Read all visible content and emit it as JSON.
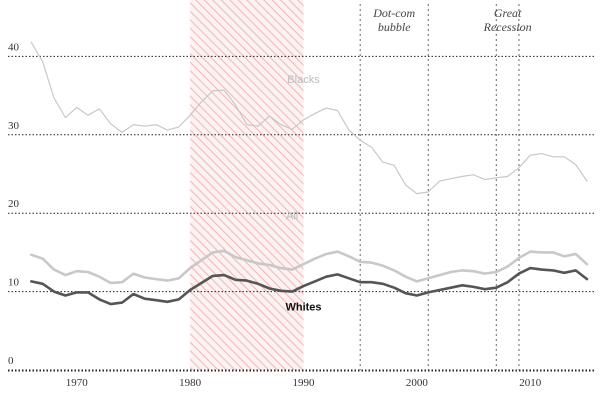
{
  "chart_data": {
    "type": "line",
    "x_range": [
      1965,
      2015
    ],
    "ylim": [
      0,
      42
    ],
    "y_ticks": [
      {
        "value": 0,
        "label": "0"
      },
      {
        "value": 10,
        "label": "10"
      },
      {
        "value": 20,
        "label": "20"
      },
      {
        "value": 30,
        "label": "30"
      },
      {
        "value": 40,
        "label": "40"
      }
    ],
    "x_ticks": [
      {
        "value": 1970,
        "label": "1970"
      },
      {
        "value": 1980,
        "label": "1980"
      },
      {
        "value": 1990,
        "label": "1990"
      },
      {
        "value": 2000,
        "label": "2000"
      },
      {
        "value": 2010,
        "label": "2010"
      }
    ],
    "shaded_period": {
      "start": 1980,
      "end": 1990
    },
    "annotations": [
      {
        "lines": [
          "Dot-com",
          "bubble"
        ],
        "x_start": 1995,
        "x_end": 2001
      },
      {
        "lines": [
          "Great",
          "Recession"
        ],
        "x_start": 2007,
        "x_end": 2009
      }
    ],
    "series": [
      {
        "name": "Blacks",
        "color": "#c8c8c8",
        "x": [
          1966,
          1967,
          1968,
          1969,
          1970,
          1971,
          1972,
          1973,
          1974,
          1975,
          1976,
          1977,
          1978,
          1979,
          1980,
          1981,
          1982,
          1983,
          1984,
          1985,
          1986,
          1987,
          1988,
          1989,
          1990,
          1991,
          1992,
          1993,
          1994,
          1995,
          1996,
          1997,
          1998,
          1999,
          2000,
          2001,
          2002,
          2003,
          2004,
          2005,
          2006,
          2007,
          2008,
          2009,
          2010,
          2011,
          2012,
          2013,
          2014,
          2015
        ],
        "values": [
          41.8,
          39.3,
          34.7,
          32.2,
          33.5,
          32.5,
          33.3,
          31.4,
          30.3,
          31.3,
          31.1,
          31.3,
          30.6,
          31.0,
          32.5,
          34.2,
          35.6,
          35.7,
          33.8,
          31.3,
          31.1,
          32.4,
          31.3,
          30.7,
          31.9,
          32.7,
          33.4,
          33.1,
          30.6,
          29.3,
          28.4,
          26.5,
          26.1,
          23.6,
          22.5,
          22.7,
          24.1,
          24.4,
          24.7,
          24.9,
          24.3,
          24.5,
          24.7,
          25.8,
          27.4,
          27.6,
          27.2,
          27.2,
          26.2,
          24.1
        ]
      },
      {
        "name": "All",
        "color": "#c8c8c8",
        "x": [
          1966,
          1967,
          1968,
          1969,
          1970,
          1971,
          1972,
          1973,
          1974,
          1975,
          1976,
          1977,
          1978,
          1979,
          1980,
          1981,
          1982,
          1983,
          1984,
          1985,
          1986,
          1987,
          1988,
          1989,
          1990,
          1991,
          1992,
          1993,
          1994,
          1995,
          1996,
          1997,
          1998,
          1999,
          2000,
          2001,
          2002,
          2003,
          2004,
          2005,
          2006,
          2007,
          2008,
          2009,
          2010,
          2011,
          2012,
          2013,
          2014,
          2015
        ],
        "values": [
          14.7,
          14.2,
          12.8,
          12.1,
          12.6,
          12.5,
          11.9,
          11.1,
          11.2,
          12.3,
          11.8,
          11.6,
          11.4,
          11.7,
          13.0,
          14.0,
          15.0,
          15.2,
          14.4,
          14.0,
          13.6,
          13.4,
          13.0,
          12.8,
          13.5,
          14.2,
          14.8,
          15.1,
          14.5,
          13.8,
          13.7,
          13.3,
          12.7,
          11.9,
          11.3,
          11.7,
          12.1,
          12.5,
          12.7,
          12.6,
          12.3,
          12.5,
          13.2,
          14.3,
          15.1,
          15.0,
          15.0,
          14.5,
          14.8,
          13.5
        ]
      },
      {
        "name": "Whites",
        "color": "#555555",
        "x": [
          1966,
          1967,
          1968,
          1969,
          1970,
          1971,
          1972,
          1973,
          1974,
          1975,
          1976,
          1977,
          1978,
          1979,
          1980,
          1981,
          1982,
          1983,
          1984,
          1985,
          1986,
          1987,
          1988,
          1989,
          1990,
          1991,
          1992,
          1993,
          1994,
          1995,
          1996,
          1997,
          1998,
          1999,
          2000,
          2001,
          2002,
          2003,
          2004,
          2005,
          2006,
          2007,
          2008,
          2009,
          2010,
          2011,
          2012,
          2013,
          2014,
          2015
        ],
        "values": [
          11.3,
          11.0,
          10.0,
          9.5,
          9.9,
          9.9,
          9.0,
          8.4,
          8.6,
          9.7,
          9.1,
          8.9,
          8.7,
          9.0,
          10.2,
          11.1,
          12.0,
          12.1,
          11.5,
          11.4,
          11.0,
          10.4,
          10.1,
          10.0,
          10.7,
          11.3,
          11.9,
          12.2,
          11.7,
          11.2,
          11.2,
          11.0,
          10.5,
          9.8,
          9.5,
          9.9,
          10.2,
          10.5,
          10.8,
          10.6,
          10.3,
          10.5,
          11.2,
          12.3,
          13.0,
          12.8,
          12.7,
          12.4,
          12.7,
          11.6
        ]
      }
    ],
    "series_labels": [
      {
        "text": "Blacks",
        "color": "#bbbbbb",
        "bold": false,
        "at": [
          1990,
          36.6
        ]
      },
      {
        "text": "All",
        "color": "#bbbbbb",
        "bold": false,
        "at": [
          1989,
          19.2
        ]
      },
      {
        "text": "Whites",
        "color": "#111111",
        "bold": true,
        "at": [
          1990,
          7.6
        ]
      }
    ]
  }
}
